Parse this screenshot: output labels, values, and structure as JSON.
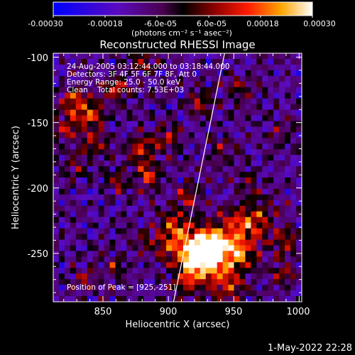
{
  "colorbar": {
    "tick_labels": [
      "-0.00030",
      "-0.00018",
      "-6.0e-05",
      "6.0e-05",
      "0.00018",
      "0.00030"
    ],
    "range": [
      -0.0003,
      0.0003
    ],
    "unit_label": "(photons cm⁻² s⁻¹ asec⁻²)"
  },
  "title": "Reconstructed RHESSI Image",
  "info_lines": [
    "24-Aug-2005 03:12:44.000 to 03:18:44.000",
    "Detectors: 3F 4F 5F 6F 7F 8F, Att 0",
    "Energy Range: 25.0 - 50.0 keV",
    "Clean    Total counts: 7.53E+03"
  ],
  "peak_label": "Position of Peak = [925,-251]",
  "timestamp": "1-May-2022 22:28",
  "chart_data": {
    "type": "heatmap",
    "title": "Reconstructed RHESSI Image",
    "xlabel": "Heliocentric X (arcsec)",
    "ylabel": "Heliocentric Y (arcsec)",
    "xlim": [
      812,
      1002
    ],
    "ylim": [
      -287,
      -97
    ],
    "x_ticks": [
      850,
      900,
      950,
      1000
    ],
    "y_ticks": [
      -100,
      -150,
      -200,
      -250
    ],
    "peak_position": [
      925,
      -251
    ],
    "color_scale": "red-temperature",
    "features": [
      {
        "x": 925,
        "y": -251,
        "strength": 1.0,
        "radius": 14
      },
      {
        "x": 935,
        "y": -245,
        "strength": 0.8,
        "radius": 18
      },
      {
        "x": 905,
        "y": -242,
        "strength": 0.55,
        "radius": 14
      },
      {
        "x": 955,
        "y": -250,
        "strength": 0.5,
        "radius": 16
      },
      {
        "x": 915,
        "y": -270,
        "strength": 0.55,
        "radius": 12
      },
      {
        "x": 945,
        "y": -275,
        "strength": 0.45,
        "radius": 14
      },
      {
        "x": 970,
        "y": -225,
        "strength": 0.45,
        "radius": 14
      },
      {
        "x": 905,
        "y": -225,
        "strength": 0.45,
        "radius": 10
      },
      {
        "x": 955,
        "y": -225,
        "strength": 0.4,
        "radius": 12
      },
      {
        "x": 990,
        "y": -240,
        "strength": 0.4,
        "radius": 10
      },
      {
        "x": 990,
        "y": -265,
        "strength": 0.3,
        "radius": 10
      },
      {
        "x": 828,
        "y": -133,
        "strength": 0.6,
        "radius": 10
      },
      {
        "x": 840,
        "y": -145,
        "strength": 0.55,
        "radius": 12
      },
      {
        "x": 820,
        "y": -155,
        "strength": 0.4,
        "radius": 10
      },
      {
        "x": 860,
        "y": -125,
        "strength": 0.45,
        "radius": 10
      },
      {
        "x": 885,
        "y": -190,
        "strength": 0.6,
        "radius": 9
      },
      {
        "x": 880,
        "y": -170,
        "strength": 0.45,
        "radius": 12
      },
      {
        "x": 860,
        "y": -195,
        "strength": 0.4,
        "radius": 10
      },
      {
        "x": 900,
        "y": -160,
        "strength": 0.4,
        "radius": 10
      },
      {
        "x": 925,
        "y": -135,
        "strength": 0.4,
        "radius": 10
      },
      {
        "x": 915,
        "y": -205,
        "strength": 0.4,
        "radius": 10
      },
      {
        "x": 845,
        "y": -165,
        "strength": 0.45,
        "radius": 10
      },
      {
        "x": 830,
        "y": -185,
        "strength": 0.35,
        "radius": 10
      },
      {
        "x": 955,
        "y": -125,
        "strength": 0.35,
        "radius": 10
      },
      {
        "x": 940,
        "y": -170,
        "strength": 0.3,
        "radius": 10
      },
      {
        "x": 985,
        "y": -160,
        "strength": 0.3,
        "radius": 10
      },
      {
        "x": 880,
        "y": -105,
        "strength": 0.35,
        "radius": 10
      },
      {
        "x": 860,
        "y": -260,
        "strength": 0.4,
        "radius": 8
      },
      {
        "x": 835,
        "y": -270,
        "strength": 0.25,
        "radius": 10
      },
      {
        "x": 880,
        "y": -240,
        "strength": 0.3,
        "radius": 10
      },
      {
        "x": 960,
        "y": -195,
        "strength": 0.3,
        "radius": 10
      }
    ],
    "limb_line": [
      [
        904,
        -287
      ],
      [
        943,
        -97
      ]
    ]
  }
}
